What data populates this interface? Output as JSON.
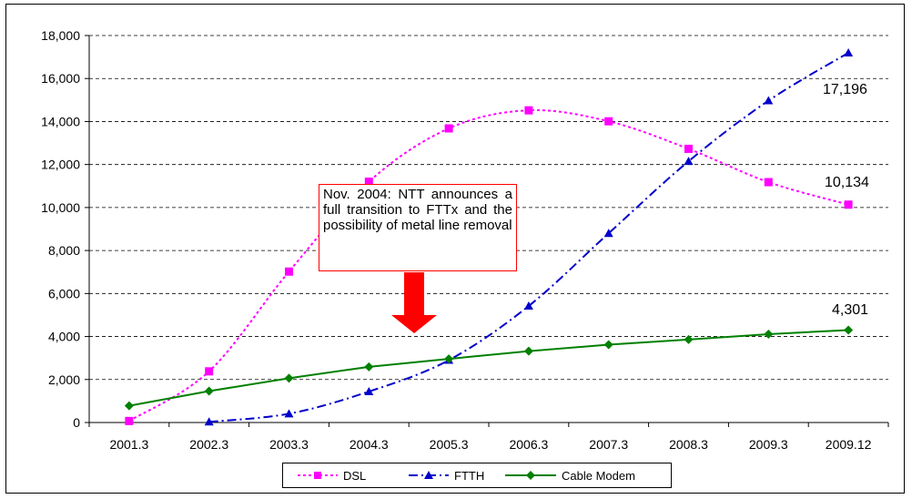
{
  "chart_data": {
    "type": "line",
    "categories": [
      "2001.3",
      "2002.3",
      "2003.3",
      "2004.3",
      "2005.3",
      "2006.3",
      "2007.3",
      "2008.3",
      "2009.3",
      "2009.12"
    ],
    "ylim": [
      0,
      18000
    ],
    "yticks": [
      "0",
      "2,000",
      "4,000",
      "6,000",
      "8,000",
      "10,000",
      "12,000",
      "14,000",
      "16,000",
      "18,000"
    ],
    "ytick_values": [
      0,
      2000,
      4000,
      6000,
      8000,
      10000,
      12000,
      14000,
      16000,
      18000
    ],
    "grid": true,
    "legend_position": "bottom",
    "series": [
      {
        "name": "DSL",
        "color": "#ff00ff",
        "style": "dotted",
        "marker": "square",
        "values": [
          70,
          2380,
          7020,
          11200,
          13680,
          14520,
          14010,
          12730,
          11180,
          10134
        ]
      },
      {
        "name": "FTTH",
        "color": "#0000cc",
        "style": "dashdot",
        "marker": "triangle",
        "values": [
          null,
          30,
          410,
          1440,
          2900,
          5420,
          8800,
          12150,
          14970,
          17196
        ]
      },
      {
        "name": "Cable Modem",
        "color": "#008000",
        "style": "solid",
        "marker": "diamond",
        "values": [
          780,
          1460,
          2060,
          2590,
          2960,
          3320,
          3620,
          3860,
          4110,
          4301
        ]
      }
    ],
    "data_labels": [
      "17,196",
      "10,134",
      "4,301"
    ],
    "annotation": {
      "text": "Nov. 2004: NTT announces a full transition to FTTx and the possibility of metal line removal",
      "border_color": "#ff0000",
      "arrow_color": "#ff0000"
    }
  }
}
